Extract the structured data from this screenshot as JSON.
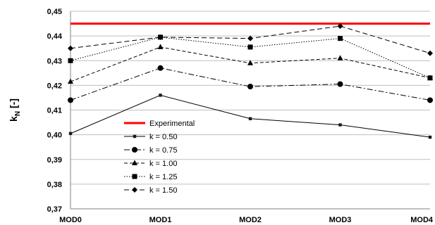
{
  "chart_data": {
    "type": "line",
    "title": "",
    "xlabel": "",
    "ylabel": "k",
    "ylabel_subscript": "N",
    "ylabel_suffix": " [-]",
    "categories": [
      "MOD0",
      "MOD1",
      "MOD2",
      "MOD3",
      "MOD4"
    ],
    "ylim": [
      0.37,
      0.45
    ],
    "yticks": [
      "0,37",
      "0,38",
      "0,39",
      "0,40",
      "0,41",
      "0,42",
      "0,43",
      "0,44",
      "0,45"
    ],
    "grid": true,
    "legend_position": "lower-left inside plot",
    "reference": {
      "name": "Experimental",
      "value": 0.445,
      "color": "#ff0000"
    },
    "series": [
      {
        "name": "k = 0.50",
        "values": [
          0.4005,
          0.416,
          0.4065,
          0.404,
          0.399
        ],
        "dash": "solid",
        "marker": "square-small"
      },
      {
        "name": "k = 0.75",
        "values": [
          0.414,
          0.427,
          0.4195,
          0.4205,
          0.414
        ],
        "dash": "dashdot",
        "marker": "circle"
      },
      {
        "name": "k = 1.00",
        "values": [
          0.4215,
          0.4355,
          0.429,
          0.431,
          0.423
        ],
        "dash": "dash",
        "marker": "triangle"
      },
      {
        "name": "k = 1.25",
        "values": [
          0.43,
          0.4395,
          0.4355,
          0.439,
          0.423
        ],
        "dash": "dot",
        "marker": "square"
      },
      {
        "name": "k = 1.50",
        "values": [
          0.435,
          0.4395,
          0.439,
          0.444,
          0.433
        ],
        "dash": "longdash",
        "marker": "diamond"
      }
    ]
  }
}
